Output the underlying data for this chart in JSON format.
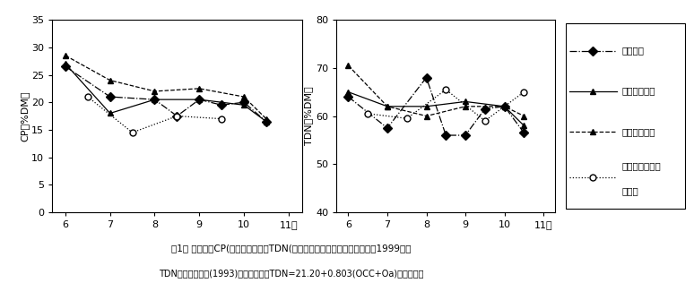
{
  "cp_x": [
    6,
    6.5,
    7,
    7.5,
    8,
    8.5,
    9,
    9.5,
    10,
    10.5
  ],
  "cp_hiE": [
    26.5,
    null,
    21.0,
    null,
    20.5,
    17.5,
    20.5,
    19.5,
    20.0,
    16.5
  ],
  "cp_guinea": [
    27.0,
    null,
    18.0,
    null,
    20.5,
    null,
    20.5,
    null,
    19.5,
    16.5
  ],
  "cp_rhodes": [
    28.5,
    null,
    24.0,
    null,
    22.0,
    null,
    22.5,
    null,
    21.0,
    17.0
  ],
  "cp_colored": [
    null,
    21.0,
    null,
    14.5,
    null,
    17.5,
    null,
    17.0,
    null,
    null
  ],
  "tdn_x": [
    6,
    6.5,
    7,
    7.5,
    8,
    8.5,
    9,
    9.5,
    10,
    10.5
  ],
  "tdn_hiE": [
    64.0,
    null,
    57.5,
    null,
    68.0,
    56.0,
    56.0,
    61.5,
    62.0,
    56.5
  ],
  "tdn_guinea": [
    65.0,
    null,
    62.0,
    null,
    62.0,
    null,
    63.0,
    null,
    62.0,
    58.0
  ],
  "tdn_rhodes": [
    70.5,
    null,
    62.0,
    null,
    60.0,
    null,
    62.0,
    null,
    62.0,
    60.0
  ],
  "tdn_colored": [
    null,
    60.5,
    null,
    59.5,
    null,
    65.5,
    null,
    59.0,
    null,
    65.0
  ],
  "cp_ylim": [
    0,
    35
  ],
  "tdn_ylim": [
    40,
    80
  ],
  "cp_yticks": [
    0,
    5,
    10,
    15,
    20,
    25,
    30,
    35
  ],
  "tdn_yticks": [
    40,
    50,
    60,
    70,
    80
  ],
  "xticks": [
    6,
    7,
    8,
    9,
    10,
    11
  ],
  "xticklabels": [
    "6",
    "7",
    "8",
    "9",
    "10",
    "11月"
  ],
  "cp_ylabel": "CP（%DM）",
  "tdn_ylabel": "TDN（%DM）",
  "legend_labels": [
    "栽培ヒエ",
    "ギニアグラス",
    "ローズグラス",
    "カラードギニア\nグラス"
  ],
  "fig_caption1": "囱1． 各草種のCP(粗蛋白質およびTDN(可消化養分総量～含有率の推移（1999年）",
  "fig_caption2": "TDNは小川・松崎(1993)による推定式TDN=21.20+0.803(OCC+Oa)を用いた。",
  "bg_color": "white"
}
